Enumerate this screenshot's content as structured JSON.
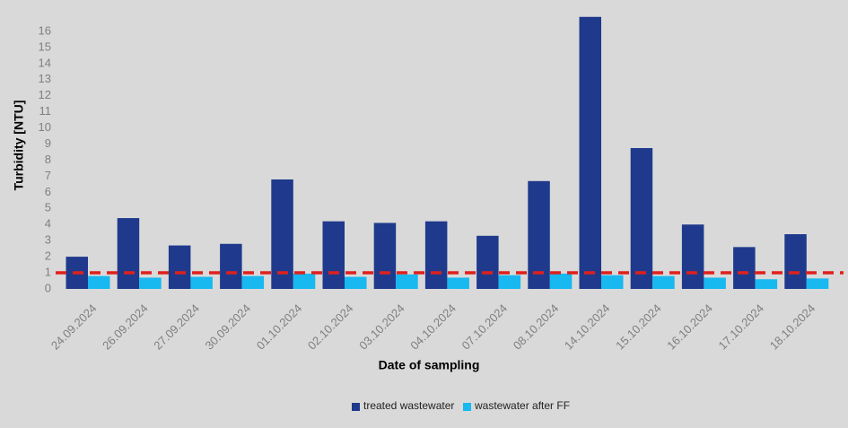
{
  "chart_data": {
    "type": "bar",
    "x_label": "Date of sampling",
    "y_label": "Turbidity  [NTU]",
    "categories": [
      "24.09.2024",
      "26.09.2024",
      "27.09.2024",
      "30.09.2024",
      "01.10.2024",
      "02.10.2024",
      "03.10.2024",
      "04.10.2024",
      "07.10.2024",
      "08.10.2024",
      "14.10.2024",
      "15.10.2024",
      "16.10.2024",
      "17.10.2024",
      "18.10.2024"
    ],
    "series": [
      {
        "name": "treated  wastewater",
        "color": "#1f3a8c",
        "values": [
          2.0,
          4.4,
          2.7,
          2.8,
          6.8,
          4.2,
          4.1,
          4.2,
          3.3,
          6.7,
          16.9,
          8.75,
          4.0,
          2.6,
          3.4
        ]
      },
      {
        "name": "wastewater  after  FF",
        "color": "#18b8f0",
        "values": [
          0.8,
          0.7,
          0.75,
          0.8,
          0.95,
          0.75,
          0.9,
          0.7,
          0.85,
          0.95,
          0.85,
          0.8,
          0.7,
          0.6,
          0.65
        ]
      }
    ],
    "reference_line": {
      "value": 1,
      "color": "#e0201c"
    },
    "ylim": [
      0,
      17
    ],
    "yticks": [
      0,
      1,
      2,
      3,
      4,
      5,
      6,
      7,
      8,
      9,
      10,
      11,
      12,
      13,
      14,
      15,
      16
    ],
    "grid": false,
    "legend": "bottom"
  }
}
